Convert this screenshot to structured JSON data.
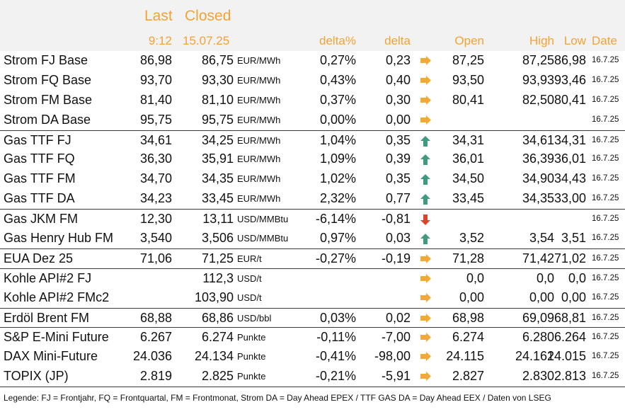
{
  "header": {
    "last_label": "Last",
    "closed_label": "Closed",
    "last_time": "9:12",
    "closed_date": "15.07.25",
    "delta_pct_label": "delta%",
    "delta_label": "delta",
    "open_label": "Open",
    "high_label": "High",
    "low_label": "Low",
    "date_label": "Date"
  },
  "rows": [
    {
      "name": "Strom FJ Base",
      "last": "86,98",
      "closed": "86,75",
      "unit": "EUR/MWh",
      "dpct": "0,27%",
      "delta": "0,23",
      "arrow": "right-arrow-icon",
      "open": "87,25",
      "high": "87,25",
      "low": "86,98",
      "date": "16.7.25",
      "sep": false
    },
    {
      "name": "Strom FQ Base",
      "last": "93,70",
      "closed": "93,30",
      "unit": "EUR/MWh",
      "dpct": "0,43%",
      "delta": "0,40",
      "arrow": "right-arrow-icon",
      "open": "93,50",
      "high": "93,93",
      "low": "93,46",
      "date": "16.7.25",
      "sep": false
    },
    {
      "name": "Strom FM Base",
      "last": "81,40",
      "closed": "81,10",
      "unit": "EUR/MWh",
      "dpct": "0,37%",
      "delta": "0,30",
      "arrow": "right-arrow-icon",
      "open": "80,41",
      "high": "82,50",
      "low": "80,41",
      "date": "16.7.25",
      "sep": false
    },
    {
      "name": "Strom DA Base",
      "last": "95,75",
      "closed": "95,75",
      "unit": "EUR/MWh",
      "dpct": "0,00%",
      "delta": "0,00",
      "arrow": "right-arrow-icon",
      "open": "",
      "high": "",
      "low": "",
      "date": "16.7.25",
      "sep": false
    },
    {
      "name": "Gas TTF FJ",
      "last": "34,61",
      "closed": "34,25",
      "unit": "EUR/MWh",
      "dpct": "1,04%",
      "delta": "0,35",
      "arrow": "up-arrow-icon",
      "open": "34,31",
      "high": "34,61",
      "low": "34,31",
      "date": "16.7.25",
      "sep": true
    },
    {
      "name": "Gas TTF FQ",
      "last": "36,30",
      "closed": "35,91",
      "unit": "EUR/MWh",
      "dpct": "1,09%",
      "delta": "0,39",
      "arrow": "up-arrow-icon",
      "open": "36,01",
      "high": "36,39",
      "low": "36,01",
      "date": "16.7.25",
      "sep": false
    },
    {
      "name": "Gas TTF FM",
      "last": "34,70",
      "closed": "34,35",
      "unit": "EUR/MWh",
      "dpct": "1,02%",
      "delta": "0,35",
      "arrow": "up-arrow-icon",
      "open": "34,50",
      "high": "34,90",
      "low": "34,43",
      "date": "16.7.25",
      "sep": false
    },
    {
      "name": "Gas TTF DA",
      "last": "34,23",
      "closed": "33,45",
      "unit": "EUR/MWh",
      "dpct": "2,32%",
      "delta": "0,77",
      "arrow": "up-arrow-icon",
      "open": "33,45",
      "high": "34,35",
      "low": "33,00",
      "date": "16.7.25",
      "sep": false
    },
    {
      "name": "Gas JKM FM",
      "last": "12,30",
      "closed": "13,11",
      "unit": "USD/MMBtu",
      "dpct": "-6,14%",
      "delta": "-0,81",
      "arrow": "down-arrow-icon",
      "open": "",
      "high": "",
      "low": "",
      "date": "16.7.25",
      "sep": true
    },
    {
      "name": "Gas Henry Hub FM",
      "last": "3,540",
      "closed": "3,506",
      "unit": "USD/MMBtu",
      "dpct": "0,97%",
      "delta": "0,03",
      "arrow": "up-arrow-icon",
      "open": "3,52",
      "high": "3,54",
      "low": "3,51",
      "date": "16.7.25",
      "sep": false
    },
    {
      "name": "EUA Dez 25",
      "last": "71,06",
      "closed": "71,25",
      "unit": "EUR/t",
      "dpct": "-0,27%",
      "delta": "-0,19",
      "arrow": "right-arrow-icon",
      "open": "71,28",
      "high": "71,42",
      "low": "71,02",
      "date": "16.7.25",
      "sep": true
    },
    {
      "name": "Kohle API#2 FJ",
      "last": "",
      "closed": "112,3",
      "unit": "USD/t",
      "dpct": "",
      "delta": "",
      "arrow": "right-arrow-icon",
      "open": "0,0",
      "high": "0,0",
      "low": "0,0",
      "date": "16.7.25",
      "sep": true
    },
    {
      "name": "Kohle API#2 FMc2",
      "last": "",
      "closed": "103,90",
      "unit": "USD/t",
      "dpct": "",
      "delta": "",
      "arrow": "right-arrow-icon",
      "open": "0,00",
      "high": "0,00",
      "low": "0,00",
      "date": "16.7.25",
      "sep": false
    },
    {
      "name": "Erdöl Brent FM",
      "last": "68,88",
      "closed": "68,86",
      "unit": "USD/bbl",
      "dpct": "0,03%",
      "delta": "0,02",
      "arrow": "right-arrow-icon",
      "open": "68,98",
      "high": "69,09",
      "low": "68,81",
      "date": "16.7.25",
      "sep": true
    },
    {
      "name": "S&P E-Mini Future",
      "last": "6.267",
      "closed": "6.274",
      "unit": "Punkte",
      "dpct": "-0,11%",
      "delta": "-7,00",
      "arrow": "right-arrow-icon",
      "open": "6.274",
      "high": "6.280",
      "low": "6.264",
      "date": "16.7.25",
      "sep": true
    },
    {
      "name": "DAX Mini-Future",
      "last": "24.036",
      "closed": "24.134",
      "unit": "Punkte",
      "dpct": "-0,41%",
      "delta": "-98,00",
      "arrow": "right-arrow-icon",
      "open": "24.115",
      "high": "24.161",
      "low": "24.015",
      "date": "16.7.25",
      "sep": false
    },
    {
      "name": "TOPIX (JP)",
      "last": "2.819",
      "closed": "2.825",
      "unit": "Punkte",
      "dpct": "-0,21%",
      "delta": "-5,91",
      "arrow": "right-arrow-icon",
      "open": "2.827",
      "high": "2.830",
      "low": "2.813",
      "date": "16.7.25",
      "sep": false
    }
  ],
  "legend": "Legende: FJ = Frontjahr, FQ = Frontquartal, FM = Frontmonat, Strom DA = Day Ahead EPEX / TTF GAS DA = Day Ahead EEX / Daten von LSEG",
  "colors": {
    "header_text": "#f4a234",
    "header_bg": "#f2f2f2",
    "arrow_up": "#3f9a7f",
    "arrow_down": "#d9452b",
    "arrow_right": "#f2a93b"
  }
}
